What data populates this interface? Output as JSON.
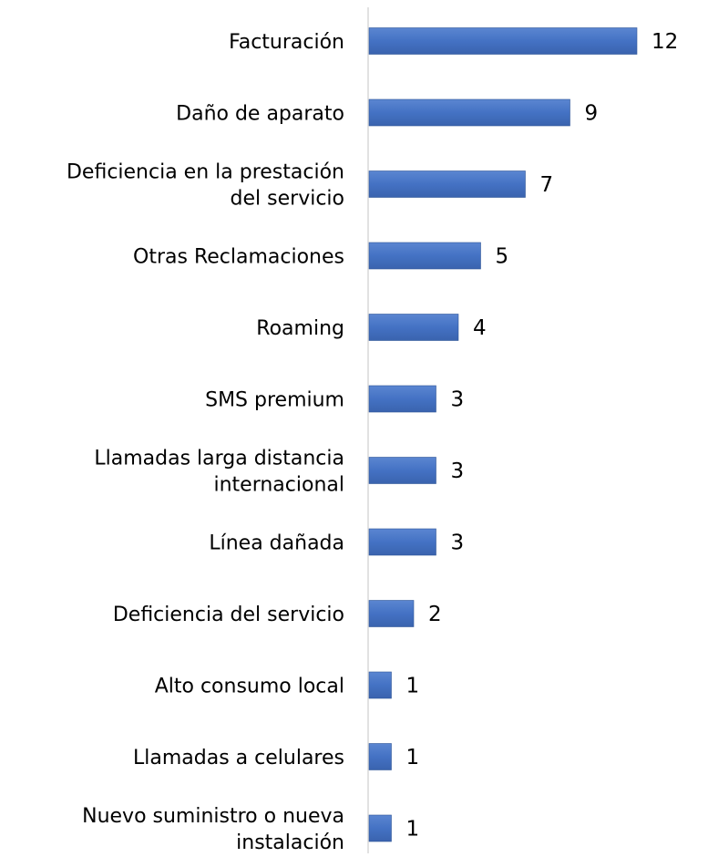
{
  "chart_data": {
    "type": "bar",
    "orientation": "horizontal",
    "categories": [
      [
        "Facturación"
      ],
      [
        "Daño de aparato"
      ],
      [
        "Deficiencia en la prestación",
        "del servicio"
      ],
      [
        "Otras Reclamaciones"
      ],
      [
        "Roaming"
      ],
      [
        "SMS premium"
      ],
      [
        "Llamadas larga distancia",
        "internacional"
      ],
      [
        "Línea dañada"
      ],
      [
        "Deficiencia del servicio"
      ],
      [
        "Alto consumo local"
      ],
      [
        "Llamadas a celulares"
      ],
      [
        "Nuevo suministro o nueva",
        "instalación"
      ]
    ],
    "values": [
      12,
      9,
      7,
      5,
      4,
      3,
      3,
      3,
      2,
      1,
      1,
      1
    ],
    "xlim": [
      0,
      12
    ],
    "grid": false,
    "legend": "none",
    "data_labels": true,
    "colors": {
      "bar": "#4472C4",
      "bar_edge": "#2F5597",
      "axis": "#D9D9D9"
    }
  }
}
